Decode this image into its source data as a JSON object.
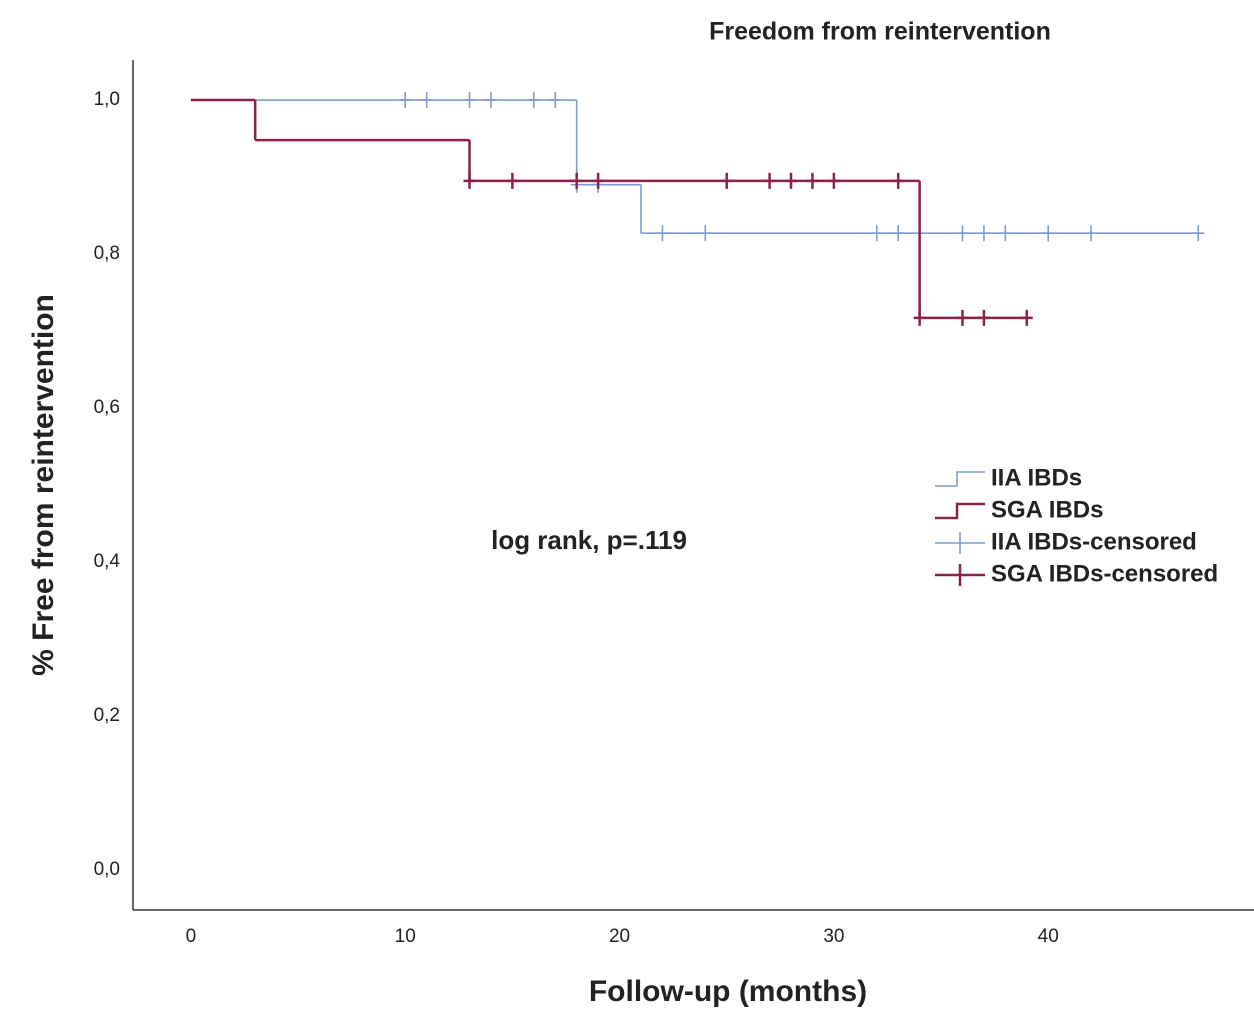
{
  "chart_data": {
    "type": "survival",
    "title": "Freedom from reintervention",
    "x_label": "Follow-up (months)",
    "y_label": "% Free from reintervention",
    "annotation": "log rank, p=.119",
    "xlim": [
      -2.7,
      49.6
    ],
    "xticks": [
      0,
      10,
      20,
      30,
      40
    ],
    "ylim": [
      -0.052,
      1.052
    ],
    "yticks": [
      {
        "value": 0,
        "label": "0,0"
      },
      {
        "value": 0.2,
        "label": "0,2"
      },
      {
        "value": 0.4,
        "label": "0,4"
      },
      {
        "value": 0.6,
        "label": "0,6"
      },
      {
        "value": 0.8,
        "label": "0,8"
      },
      {
        "value": 1,
        "label": "1,0"
      }
    ],
    "legend": "right",
    "series": [
      {
        "name": "IIA IBDs",
        "color": "#7d9bd0",
        "style": "step",
        "x": [
          0,
          18,
          21,
          47
        ],
        "values": [
          1,
          0.89,
          0.827,
          0.827
        ]
      },
      {
        "name": "SGA IBDs",
        "color": "#8b2346",
        "style": "step",
        "x": [
          0,
          3,
          13,
          34,
          39
        ],
        "values": [
          1,
          0.948,
          0.895,
          0.717,
          0.717
        ]
      },
      {
        "name": "IIA IBDs-censored",
        "color": "#7d9bd0",
        "style": "censor",
        "x": [
          10,
          11,
          13,
          14,
          16,
          17,
          18,
          19,
          22,
          24,
          32,
          33,
          36,
          37,
          38,
          40,
          42,
          47
        ],
        "values": [
          1,
          1,
          1,
          1,
          1,
          1,
          0.89,
          0.89,
          0.827,
          0.827,
          0.827,
          0.827,
          0.827,
          0.827,
          0.827,
          0.827,
          0.827,
          0.827
        ]
      },
      {
        "name": "SGA IBDs-censored",
        "color": "#8b2346",
        "style": "censor",
        "x": [
          13,
          15,
          18,
          19,
          25,
          27,
          28,
          29,
          30,
          33,
          34,
          36,
          37,
          39
        ],
        "values": [
          0.895,
          0.895,
          0.895,
          0.895,
          0.895,
          0.895,
          0.895,
          0.895,
          0.895,
          0.895,
          0.717,
          0.717,
          0.717,
          0.717
        ]
      }
    ]
  }
}
